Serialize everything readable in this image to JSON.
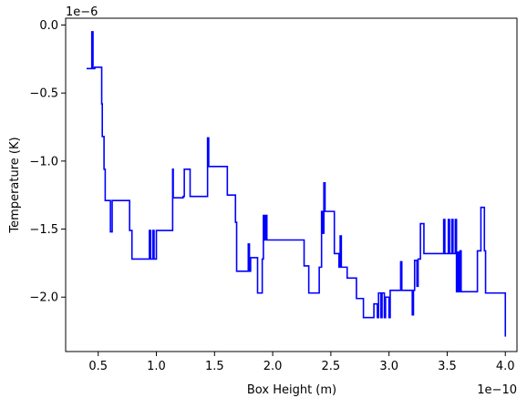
{
  "chart_data": {
    "type": "line",
    "xlabel": "Box Height (m)",
    "ylabel": "Temperature (K)",
    "x_offset_label": "1e−10",
    "y_offset_label": "1e−6",
    "xlim": [
      0.22,
      4.1
    ],
    "ylim": [
      -2.4,
      0.05
    ],
    "x_ticks": [
      0.5,
      1.0,
      1.5,
      2.0,
      2.5,
      3.0,
      3.5,
      4.0
    ],
    "x_tick_labels": [
      "0.5",
      "1.0",
      "1.5",
      "2.0",
      "2.5",
      "3.0",
      "3.5",
      "4.0"
    ],
    "y_ticks": [
      0.0,
      -0.5,
      -1.0,
      -1.5,
      -2.0
    ],
    "y_tick_labels": [
      "0.0",
      "−0.5",
      "−1.0",
      "−1.5",
      "−2.0"
    ],
    "grid": false,
    "series": [
      {
        "color": "#0000ff",
        "step": true,
        "x": [
          0.4,
          0.44,
          0.445,
          0.455,
          0.47,
          0.53,
          0.535,
          0.55,
          0.56,
          0.6,
          0.605,
          0.62,
          0.77,
          0.79,
          0.94,
          0.95,
          0.97,
          0.98,
          1.0,
          1.14,
          1.145,
          1.23,
          1.24,
          1.28,
          1.29,
          1.43,
          1.44,
          1.45,
          1.46,
          1.61,
          1.62,
          1.68,
          1.69,
          1.78,
          1.79,
          1.8,
          1.81,
          1.87,
          1.91,
          1.92,
          1.93,
          1.94,
          1.95,
          2.2,
          2.27,
          2.3,
          2.31,
          2.4,
          2.41,
          2.42,
          2.43,
          2.44,
          2.45,
          2.47,
          2.53,
          2.54,
          2.57,
          2.58,
          2.59,
          2.64,
          2.65,
          2.7,
          2.72,
          2.77,
          2.78,
          2.86,
          2.87,
          2.9,
          2.91,
          2.93,
          2.94,
          2.96,
          2.97,
          3.0,
          3.01,
          3.02,
          3.04,
          3.1,
          3.11,
          3.12,
          3.14,
          3.15,
          3.18,
          3.19,
          3.2,
          3.21,
          3.22,
          3.24,
          3.25,
          3.27,
          3.29,
          3.3,
          3.32,
          3.35,
          3.36,
          3.42,
          3.47,
          3.48,
          3.49,
          3.51,
          3.52,
          3.54,
          3.55,
          3.57,
          3.58,
          3.59,
          3.6,
          3.61,
          3.62,
          3.68,
          3.76,
          3.77,
          3.79,
          3.8,
          3.82,
          3.83,
          3.85,
          3.99,
          4.0
        ],
        "y": [
          -0.32,
          -0.32,
          -0.05,
          -0.32,
          -0.31,
          -0.58,
          -0.82,
          -1.06,
          -1.29,
          -1.29,
          -1.52,
          -1.29,
          -1.51,
          -1.72,
          -1.51,
          -1.72,
          -1.51,
          -1.72,
          -1.51,
          -1.06,
          -1.27,
          -1.26,
          -1.06,
          -1.06,
          -1.26,
          -1.26,
          -0.83,
          -1.04,
          -1.04,
          -1.25,
          -1.25,
          -1.45,
          -1.81,
          -1.81,
          -1.61,
          -1.81,
          -1.71,
          -1.97,
          -1.72,
          -1.4,
          -1.58,
          -1.4,
          -1.58,
          -1.58,
          -1.77,
          -1.77,
          -1.97,
          -1.78,
          -1.78,
          -1.37,
          -1.53,
          -1.16,
          -1.37,
          -1.37,
          -1.68,
          -1.68,
          -1.78,
          -1.55,
          -1.78,
          -1.86,
          -1.86,
          -1.86,
          -2.01,
          -2.01,
          -2.15,
          -2.15,
          -2.05,
          -2.15,
          -1.97,
          -2.15,
          -1.97,
          -2.15,
          -2.0,
          -2.15,
          -1.95,
          -1.95,
          -1.95,
          -1.74,
          -1.95,
          -1.95,
          -1.95,
          -1.95,
          -1.95,
          -1.95,
          -2.13,
          -1.95,
          -1.73,
          -1.92,
          -1.72,
          -1.46,
          -1.46,
          -1.68,
          -1.68,
          -1.68,
          -1.68,
          -1.68,
          -1.43,
          -1.68,
          -1.68,
          -1.43,
          -1.68,
          -1.43,
          -1.68,
          -1.43,
          -1.96,
          -1.67,
          -1.96,
          -1.66,
          -1.96,
          -1.96,
          -1.66,
          -1.66,
          -1.34,
          -1.34,
          -1.66,
          -1.97,
          -1.97,
          -1.97,
          -2.29
        ]
      }
    ]
  }
}
